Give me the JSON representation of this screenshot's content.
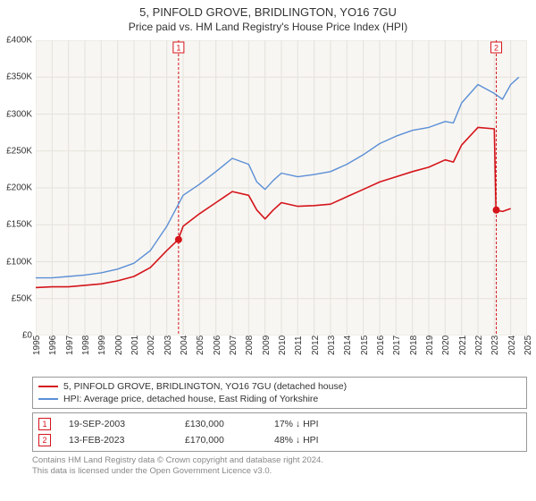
{
  "title": "5, PINFOLD GROVE, BRIDLINGTON, YO16 7GU",
  "subtitle": "Price paid vs. HM Land Registry's House Price Index (HPI)",
  "chart": {
    "type": "line",
    "background_color": "#f8f6f2",
    "grid_color": "#e5e2db",
    "border_color": "#cccccc",
    "x": {
      "min": 1995,
      "max": 2025,
      "ticks": [
        1995,
        1996,
        1997,
        1998,
        1999,
        2000,
        2001,
        2002,
        2003,
        2004,
        2005,
        2006,
        2007,
        2008,
        2009,
        2010,
        2011,
        2012,
        2013,
        2014,
        2015,
        2016,
        2017,
        2018,
        2019,
        2020,
        2021,
        2022,
        2023,
        2024,
        2025
      ],
      "label_fontsize": 10
    },
    "y": {
      "min": 0,
      "max": 400000,
      "tick_step": 50000,
      "tick_labels": [
        "£0",
        "£50K",
        "£100K",
        "£150K",
        "£200K",
        "£250K",
        "£300K",
        "£350K",
        "£400K"
      ],
      "label_fontsize": 10
    },
    "series": [
      {
        "name": "property",
        "color": "#d4151b",
        "width": 1.6,
        "points": [
          [
            1995,
            65000
          ],
          [
            1996,
            66000
          ],
          [
            1997,
            66000
          ],
          [
            1998,
            68000
          ],
          [
            1999,
            70000
          ],
          [
            2000,
            74000
          ],
          [
            2001,
            80000
          ],
          [
            2002,
            92000
          ],
          [
            2003,
            115000
          ],
          [
            2003.7,
            130000
          ],
          [
            2004,
            148000
          ],
          [
            2005,
            165000
          ],
          [
            2006,
            180000
          ],
          [
            2007,
            195000
          ],
          [
            2008,
            190000
          ],
          [
            2008.5,
            170000
          ],
          [
            2009,
            158000
          ],
          [
            2009.5,
            170000
          ],
          [
            2010,
            180000
          ],
          [
            2011,
            175000
          ],
          [
            2012,
            176000
          ],
          [
            2013,
            178000
          ],
          [
            2014,
            188000
          ],
          [
            2015,
            198000
          ],
          [
            2016,
            208000
          ],
          [
            2017,
            215000
          ],
          [
            2018,
            222000
          ],
          [
            2019,
            228000
          ],
          [
            2020,
            238000
          ],
          [
            2020.5,
            235000
          ],
          [
            2021,
            258000
          ],
          [
            2022,
            282000
          ],
          [
            2023,
            280000
          ],
          [
            2023.1,
            170000
          ],
          [
            2023.5,
            168000
          ],
          [
            2024,
            172000
          ]
        ]
      },
      {
        "name": "hpi",
        "color": "#5b8fd6",
        "width": 1.4,
        "points": [
          [
            1995,
            78000
          ],
          [
            1996,
            78000
          ],
          [
            1997,
            80000
          ],
          [
            1998,
            82000
          ],
          [
            1999,
            85000
          ],
          [
            2000,
            90000
          ],
          [
            2001,
            98000
          ],
          [
            2002,
            115000
          ],
          [
            2003,
            148000
          ],
          [
            2004,
            190000
          ],
          [
            2005,
            205000
          ],
          [
            2006,
            222000
          ],
          [
            2007,
            240000
          ],
          [
            2008,
            232000
          ],
          [
            2008.5,
            208000
          ],
          [
            2009,
            198000
          ],
          [
            2009.5,
            210000
          ],
          [
            2010,
            220000
          ],
          [
            2011,
            215000
          ],
          [
            2012,
            218000
          ],
          [
            2013,
            222000
          ],
          [
            2014,
            232000
          ],
          [
            2015,
            245000
          ],
          [
            2016,
            260000
          ],
          [
            2017,
            270000
          ],
          [
            2018,
            278000
          ],
          [
            2019,
            282000
          ],
          [
            2020,
            290000
          ],
          [
            2020.5,
            288000
          ],
          [
            2021,
            315000
          ],
          [
            2022,
            340000
          ],
          [
            2023,
            328000
          ],
          [
            2023.5,
            320000
          ],
          [
            2024,
            340000
          ],
          [
            2024.5,
            350000
          ]
        ]
      }
    ],
    "sale_markers": [
      {
        "n": 1,
        "year": 2003.72,
        "color": "#d4151b",
        "line_top": true,
        "dot_y": 130000
      },
      {
        "n": 2,
        "year": 2023.12,
        "color": "#d4151b",
        "line_top": true,
        "dot_y": 170000
      }
    ]
  },
  "legend": {
    "items": [
      {
        "color": "#d4151b",
        "label": "5, PINFOLD GROVE, BRIDLINGTON, YO16 7GU (detached house)"
      },
      {
        "color": "#5b8fd6",
        "label": "HPI: Average price, detached house, East Riding of Yorkshire"
      }
    ]
  },
  "sales": [
    {
      "n": "1",
      "color": "#d4151b",
      "date": "19-SEP-2003",
      "price": "£130,000",
      "pct": "17% ↓ HPI"
    },
    {
      "n": "2",
      "color": "#d4151b",
      "date": "13-FEB-2023",
      "price": "£170,000",
      "pct": "48% ↓ HPI"
    }
  ],
  "footer_line1": "Contains HM Land Registry data © Crown copyright and database right 2024.",
  "footer_line2": "This data is licensed under the Open Government Licence v3.0."
}
